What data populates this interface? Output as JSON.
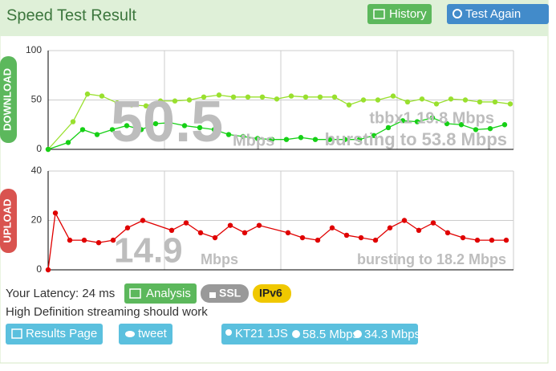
{
  "header": {
    "title": "Speed Test Result",
    "buttons": [
      "History",
      "Test Again"
    ]
  },
  "charts": [
    {
      "type": "line",
      "label": "DOWNLOAD",
      "xlim": [
        0,
        580
      ],
      "ylim": [
        0,
        100
      ],
      "yticks": [
        0,
        50,
        100
      ],
      "series": [
        {
          "color": "#99e02e",
          "x": [
            0,
            31,
            49,
            67,
            86,
            104,
            122,
            140,
            158,
            176,
            194,
            213,
            231,
            249,
            267,
            285,
            303,
            321,
            339,
            357,
            375,
            393,
            411,
            430,
            448,
            466,
            484,
            502,
            520,
            538,
            557,
            576
          ],
          "values": [
            0,
            28,
            56,
            54,
            47,
            45,
            44,
            49,
            49,
            50,
            53,
            55,
            53,
            53,
            53,
            51,
            54,
            53,
            53,
            53,
            45,
            50,
            50,
            54,
            48,
            51,
            46,
            51,
            50,
            48,
            48,
            46
          ]
        },
        {
          "color": "#16d016",
          "x": [
            0,
            25,
            43,
            61,
            80,
            98,
            116,
            134,
            152,
            170,
            189,
            207,
            225,
            243,
            261,
            279,
            297,
            315,
            333,
            351,
            370,
            388,
            406,
            424,
            442,
            460,
            479,
            497,
            515,
            533,
            551,
            569
          ],
          "values": [
            0,
            7,
            20,
            15,
            20,
            24,
            20,
            26,
            27,
            24,
            22,
            20,
            15,
            13,
            11,
            10,
            10,
            12,
            10,
            10,
            10,
            10,
            14,
            22,
            29,
            28,
            32,
            26,
            25,
            20,
            21,
            25
          ]
        }
      ],
      "speed": "50.5",
      "unit": "Mbps",
      "detail": "tbbx1 19.8 Mbps",
      "burst": "bursting to 53.8 Mbps"
    },
    {
      "type": "line",
      "label": "UPLOAD",
      "xlim": [
        0,
        580
      ],
      "ylim": [
        0,
        40
      ],
      "yticks": [
        0,
        20,
        40
      ],
      "series": [
        {
          "color": "#e00000",
          "x": [
            0,
            9,
            27,
            45,
            63,
            81,
            99,
            118,
            154,
            172,
            190,
            208,
            227,
            245,
            263,
            299,
            317,
            336,
            354,
            372,
            390,
            408,
            426,
            444,
            462,
            480,
            498,
            517,
            535,
            553,
            571
          ],
          "values": [
            0,
            23,
            12,
            12,
            11,
            12,
            17,
            20,
            16,
            19,
            15,
            13,
            18,
            15,
            18,
            15,
            13,
            12,
            17,
            14,
            13,
            12,
            17,
            20,
            16,
            19,
            15,
            13,
            12,
            12,
            12
          ]
        }
      ],
      "speed": "14.9",
      "unit": "Mbps",
      "burst": "bursting to 18.2 Mbps"
    }
  ],
  "latency": "Your Latency: 24 ms",
  "badges": [
    "Analysis",
    "SSL",
    "IPv6"
  ],
  "note": "High Definition streaming should work",
  "footer": {
    "results": "Results Page",
    "tweet": "tweet",
    "location": "KT21 1JS",
    "download": "58.5 Mbps",
    "upload": "34.3 Mbps"
  }
}
